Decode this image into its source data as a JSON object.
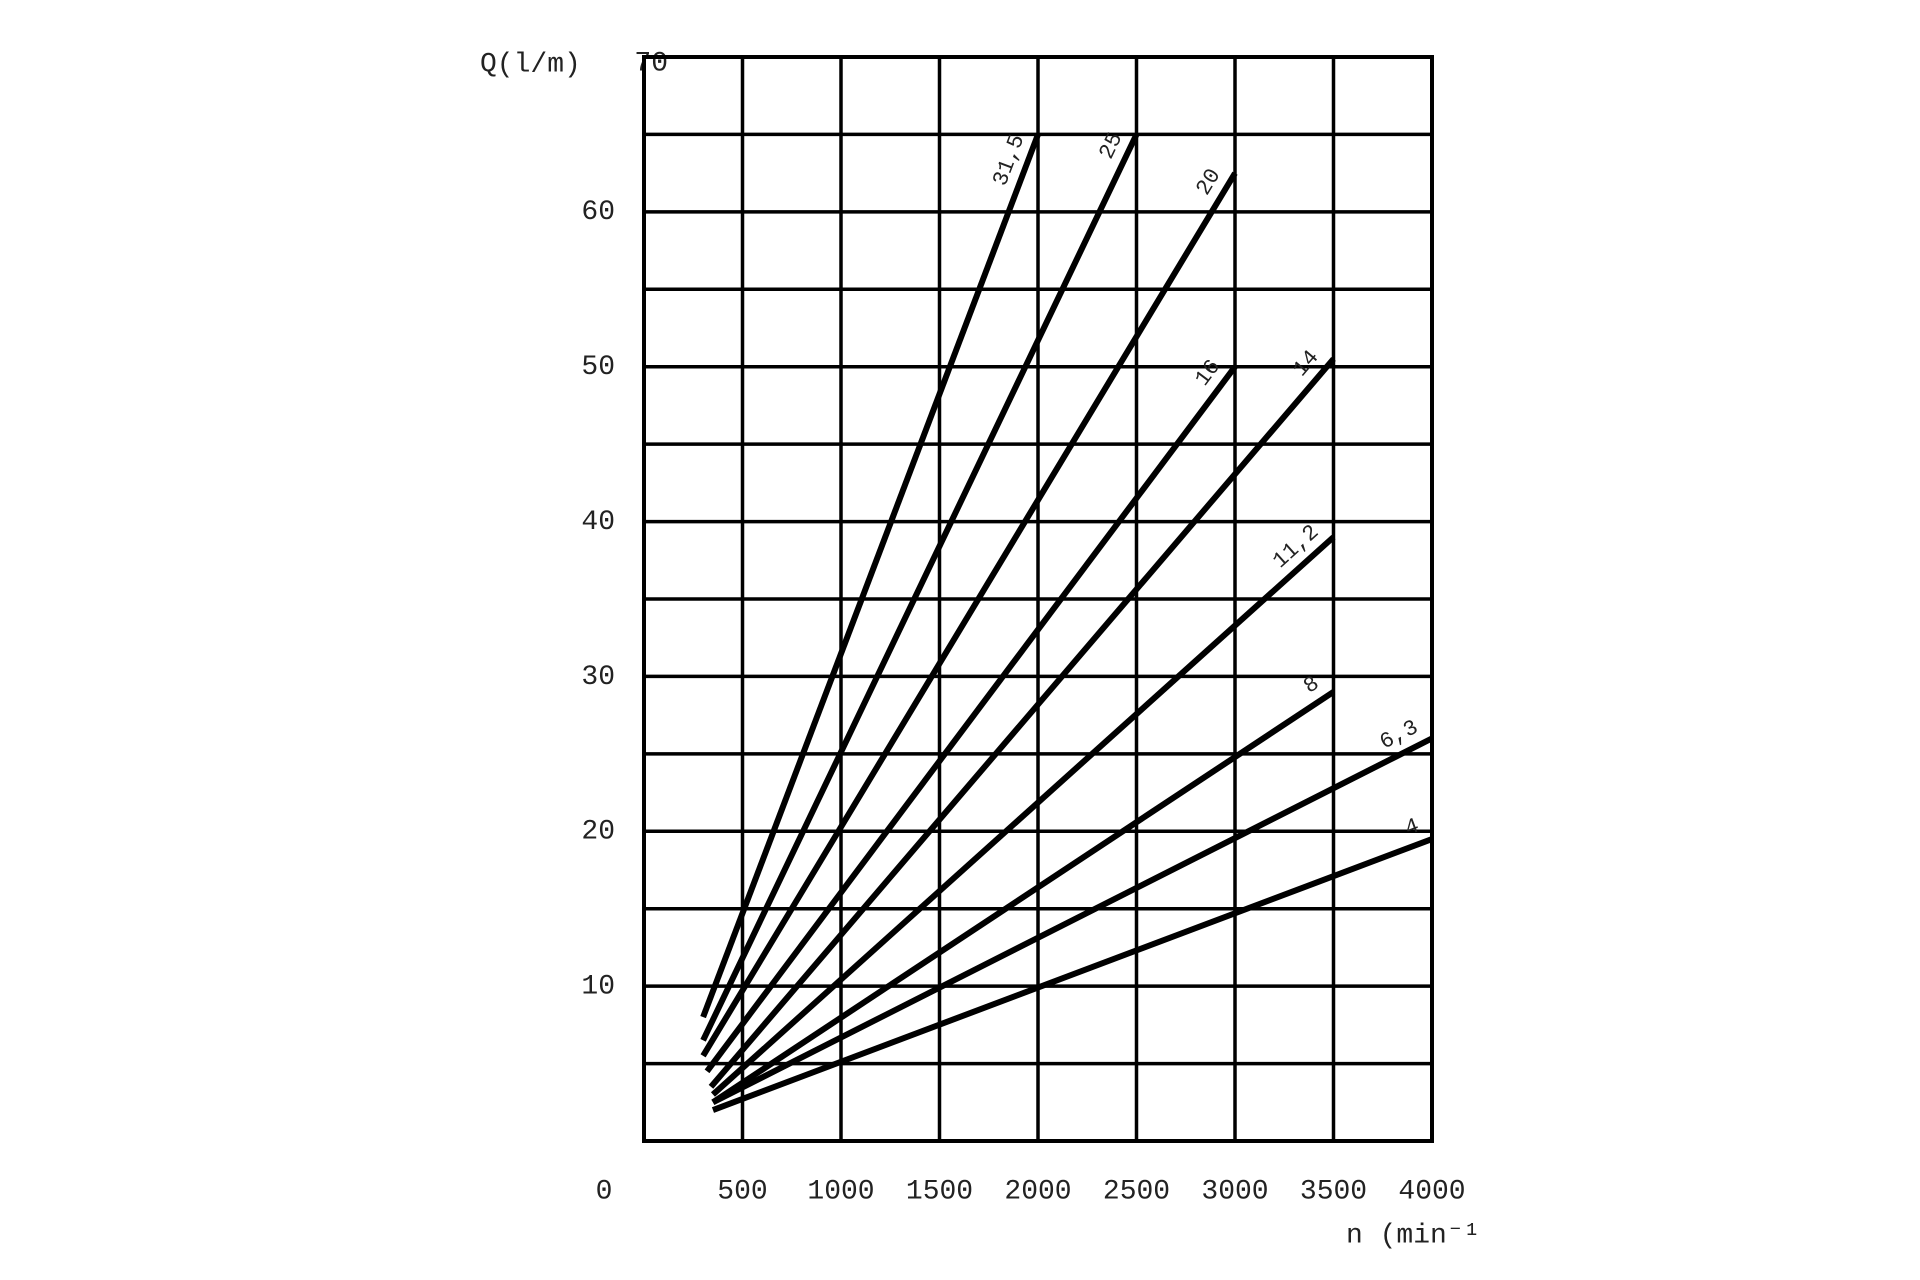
{
  "chart_data": {
    "type": "line",
    "ylabel": "Q(l/m)",
    "xlabel": "n (min⁻¹)",
    "xlim": [
      0,
      4000
    ],
    "xticks": [
      0,
      500,
      1000,
      1500,
      2000,
      2500,
      3000,
      3500,
      4000
    ],
    "ylim": [
      0,
      70
    ],
    "yticks": [
      10,
      20,
      30,
      40,
      50,
      60,
      70
    ],
    "yminor": [
      5,
      15,
      25,
      35,
      45,
      55,
      65
    ],
    "grid": true,
    "series": [
      {
        "name": "31,5",
        "color": "#000000",
        "x": [
          300,
          2000
        ],
        "values": [
          8,
          65
        ]
      },
      {
        "name": "25",
        "color": "#000000",
        "x": [
          300,
          2500
        ],
        "values": [
          6.5,
          65
        ]
      },
      {
        "name": "20",
        "color": "#000000",
        "x": [
          300,
          3000
        ],
        "values": [
          5.5,
          62.5
        ]
      },
      {
        "name": "16",
        "color": "#000000",
        "x": [
          320,
          3000
        ],
        "values": [
          4.5,
          50
        ]
      },
      {
        "name": "14",
        "color": "#000000",
        "x": [
          340,
          3500
        ],
        "values": [
          3.5,
          50.5
        ]
      },
      {
        "name": "11,2",
        "color": "#000000",
        "x": [
          350,
          3500
        ],
        "values": [
          3,
          39
        ]
      },
      {
        "name": "8",
        "color": "#000000",
        "x": [
          350,
          3500
        ],
        "values": [
          2.5,
          29
        ]
      },
      {
        "name": "6,3",
        "color": "#000000",
        "x": [
          350,
          4000
        ],
        "values": [
          2.5,
          26
        ]
      },
      {
        "name": "4",
        "color": "#000000",
        "x": [
          350,
          4000
        ],
        "values": [
          2,
          19.5
        ]
      }
    ]
  }
}
